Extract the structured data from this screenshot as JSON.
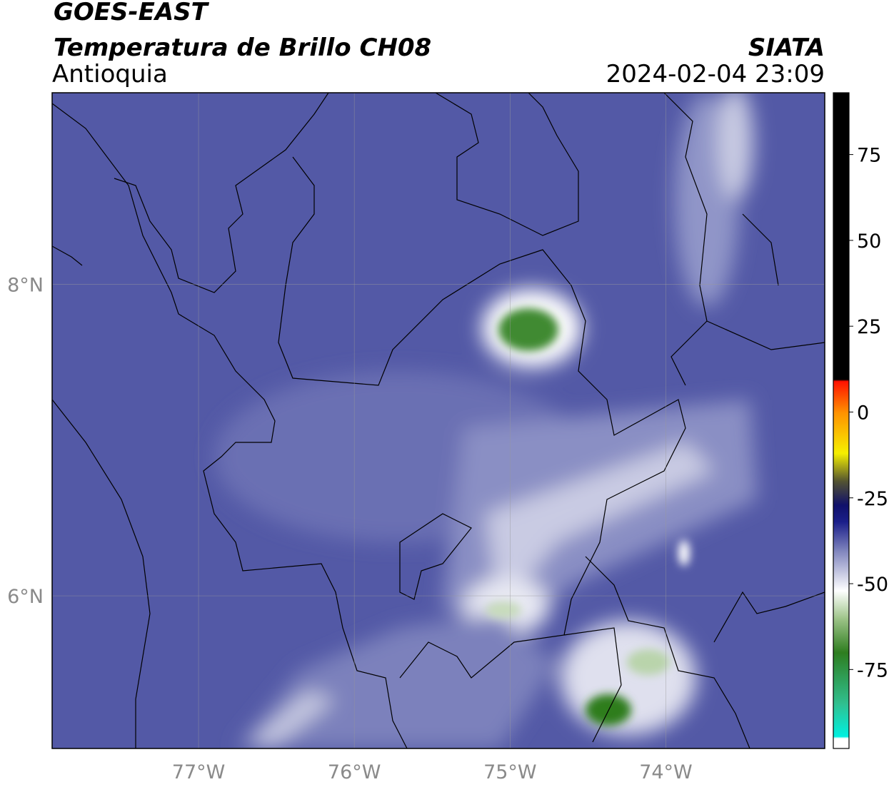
{
  "header": {
    "title": "GOES-EAST",
    "subtitle": "Temperatura de Brillo CH08",
    "region": "Antioquia",
    "source": "SIATA",
    "datetime": "2024-02-04 23:09"
  },
  "map": {
    "xlim": [
      -77.94,
      -72.98
    ],
    "ylim": [
      5.02,
      9.23
    ],
    "xticks": [
      {
        "value": -77,
        "label": "77°W"
      },
      {
        "value": -76,
        "label": "76°W"
      },
      {
        "value": -75,
        "label": "75°W"
      },
      {
        "value": -74,
        "label": "74°W"
      }
    ],
    "yticks": [
      {
        "value": 8,
        "label": "8°N"
      },
      {
        "value": 6,
        "label": "6°N"
      }
    ],
    "grid": true
  },
  "colorbar": {
    "lim": [
      -98,
      93
    ],
    "ticks": [
      75,
      50,
      25,
      0,
      -25,
      -50,
      -75
    ],
    "stops": [
      {
        "value": -98,
        "color": "#ffffff"
      },
      {
        "value": -95,
        "color": "#ffffff"
      },
      {
        "value": -94.5,
        "color": "#00f0e0"
      },
      {
        "value": -85,
        "color": "#30c090"
      },
      {
        "value": -70,
        "color": "#2e7d1f"
      },
      {
        "value": -60,
        "color": "#9fc58a"
      },
      {
        "value": -52,
        "color": "#ffffff"
      },
      {
        "value": -40,
        "color": "#7b80bb"
      },
      {
        "value": -32,
        "color": "#1b1f8a"
      },
      {
        "value": -27,
        "color": "#10106a"
      },
      {
        "value": -20,
        "color": "#555530"
      },
      {
        "value": -12,
        "color": "#f5f000"
      },
      {
        "value": 0,
        "color": "#ff9000"
      },
      {
        "value": 9,
        "color": "#ff1000"
      },
      {
        "value": 9.5,
        "color": "#000000"
      },
      {
        "value": 93,
        "color": "#000000"
      }
    ]
  }
}
